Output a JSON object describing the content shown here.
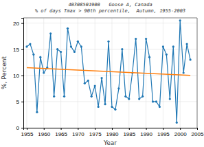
{
  "chart_data": {
    "type": "line",
    "annotations": [
      "40308501900   Goose A, Canada",
      "% of days Tmax > 90th percentile,  Autumn, 1955-2003"
    ],
    "xlabel": "Year",
    "ylabel": "%, Percent",
    "x": [
      1955,
      1956,
      1957,
      1958,
      1959,
      1960,
      1961,
      1962,
      1963,
      1964,
      1965,
      1966,
      1967,
      1968,
      1969,
      1970,
      1971,
      1972,
      1973,
      1974,
      1975,
      1976,
      1977,
      1978,
      1979,
      1980,
      1981,
      1982,
      1983,
      1984,
      1985,
      1986,
      1987,
      1988,
      1989,
      1990,
      1991,
      1992,
      1993,
      1994,
      1995,
      1996,
      1997,
      1998,
      1999,
      2000,
      2001,
      2002,
      2003
    ],
    "values": [
      15.5,
      16.0,
      14.0,
      3.0,
      13.5,
      10.5,
      11.5,
      18.0,
      6.0,
      15.0,
      14.5,
      6.0,
      19.0,
      15.5,
      14.5,
      16.5,
      15.5,
      8.5,
      9.0,
      6.0,
      8.0,
      4.0,
      9.5,
      4.5,
      16.5,
      4.0,
      3.5,
      7.5,
      15.0,
      6.0,
      5.5,
      10.5,
      17.0,
      5.5,
      6.0,
      17.0,
      13.5,
      5.0,
      5.0,
      4.0,
      15.5,
      14.0,
      5.5,
      15.5,
      1.0,
      20.5,
      10.5,
      16.0,
      13.0
    ],
    "marker": "circle",
    "trend": {
      "x": [
        1955,
        2003
      ],
      "values": [
        11.5,
        10.0
      ]
    },
    "xlim": [
      1954,
      2005
    ],
    "ylim": [
      0,
      21
    ],
    "xticks": [
      1955,
      1960,
      1965,
      1970,
      1975,
      1980,
      1985,
      1990,
      1995,
      2000,
      2005
    ],
    "yticks": [
      0,
      5,
      10,
      15,
      20
    ],
    "grid": true
  }
}
